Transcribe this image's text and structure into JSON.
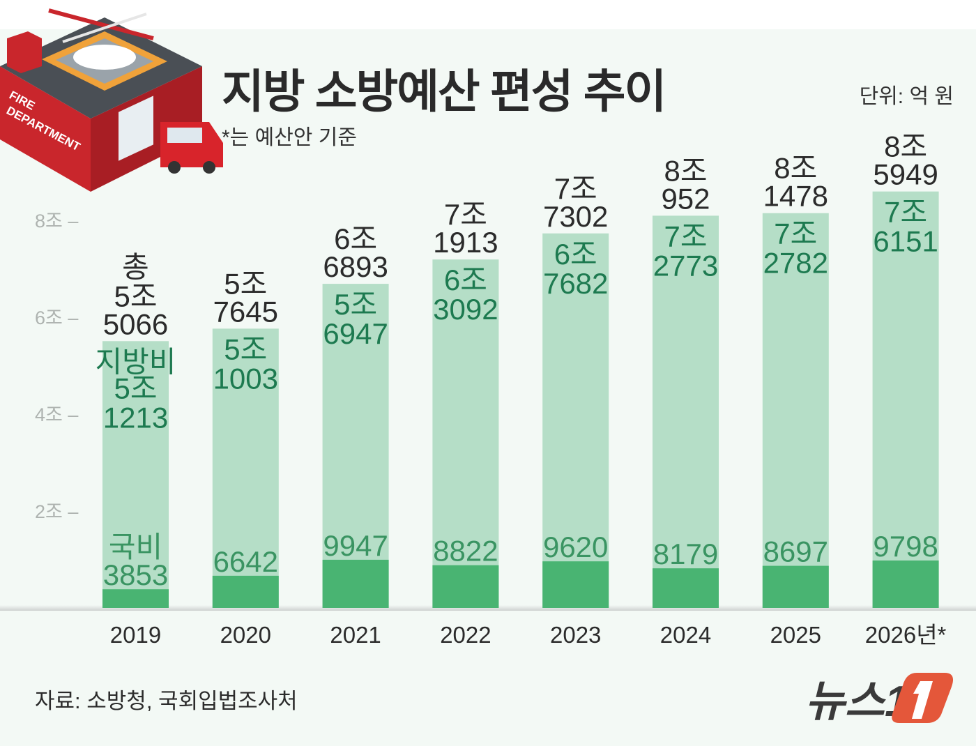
{
  "header": {
    "title": "지방 소방예산 편성 추이",
    "subtitle": "*는 예산안 기준",
    "unit": "단위: 억 원"
  },
  "footer": {
    "source": "자료: 소방청, 국회입법조사처",
    "logo_text": "뉴스1"
  },
  "illustration": {
    "label_line1": "FIRE",
    "label_line2": "DEPARTMENT"
  },
  "colors": {
    "local_bar": "#b5dec7",
    "national_bar": "#49b472",
    "local_text": "#1d7a50",
    "national_text": "#3a9462",
    "logo_accent": "#e4573a"
  },
  "chart_data": {
    "type": "bar",
    "stacked": true,
    "title": "지방 소방예산 편성 추이",
    "unit": "억 원",
    "categories": [
      "2019",
      "2020",
      "2021",
      "2022",
      "2023",
      "2024",
      "2025",
      "2026년*"
    ],
    "series": [
      {
        "name": "국비",
        "values": [
          3853,
          6642,
          9947,
          8822,
          9620,
          8179,
          8697,
          9798
        ]
      },
      {
        "name": "지방비",
        "values": [
          51213,
          51003,
          56947,
          63092,
          67682,
          72773,
          72782,
          76151
        ]
      }
    ],
    "totals": [
      55066,
      57645,
      66893,
      71913,
      77302,
      80952,
      81478,
      85949
    ],
    "total_prefix": "총",
    "total_labels": [
      [
        "5조",
        "5066"
      ],
      [
        "5조",
        "7645"
      ],
      [
        "6조",
        "6893"
      ],
      [
        "7조",
        "1913"
      ],
      [
        "7조",
        "7302"
      ],
      [
        "8조",
        "952"
      ],
      [
        "8조",
        "1478"
      ],
      [
        "8조",
        "5949"
      ]
    ],
    "local_labels": [
      [
        "5조",
        "1213"
      ],
      [
        "5조",
        "1003"
      ],
      [
        "5조",
        "6947"
      ],
      [
        "6조",
        "3092"
      ],
      [
        "6조",
        "7682"
      ],
      [
        "7조",
        "2773"
      ],
      [
        "7조",
        "2782"
      ],
      [
        "7조",
        "6151"
      ]
    ],
    "national_labels": [
      "3853",
      "6642",
      "9947",
      "8822",
      "9620",
      "8179",
      "8697",
      "9798"
    ],
    "yticks": [
      {
        "value": 20000,
        "label": "2조 –"
      },
      {
        "value": 40000,
        "label": "4조 –"
      },
      {
        "value": 60000,
        "label": "6조 –"
      },
      {
        "value": 80000,
        "label": "8조 –"
      }
    ],
    "ylim": [
      0,
      90000
    ],
    "grid": false,
    "legend": "inline labels on first bar"
  }
}
